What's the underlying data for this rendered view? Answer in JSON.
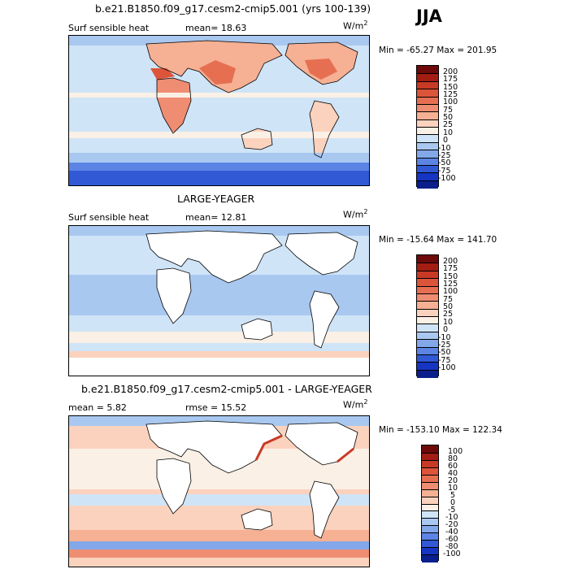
{
  "season": "JJA",
  "panels": [
    {
      "title": "b.e21.B1850.f09_g17.cesm2-cmip5.001 (yrs 100-139)",
      "label_left": "Surf sensible heat",
      "stat_mid": "mean=  18.63",
      "units": "W/m",
      "units_sup": "2",
      "minmax": "Min = -65.27 Max = 201.95"
    },
    {
      "title": "LARGE-YEAGER",
      "label_left": "Surf sensible heat",
      "stat_mid": "mean=  12.81",
      "units": "W/m",
      "units_sup": "2",
      "minmax": "Min = -15.64 Max = 141.70"
    },
    {
      "title": "b.e21.B1850.f09_g17.cesm2-cmip5.001 - LARGE-YEAGER",
      "label_left": "mean =   5.82",
      "stat_mid": "rmse =   15.52",
      "units": "W/m",
      "units_sup": "2",
      "minmax": "Min = -153.10 Max = 122.34"
    }
  ],
  "chart_data": [
    {
      "type": "heatmap",
      "title": "b.e21.B1850.f09_g17.cesm2-cmip5.001 (yrs 100-139)",
      "variable": "Surf sensible heat",
      "units": "W/m^2",
      "mean": 18.63,
      "min": -65.27,
      "max": 201.95,
      "colorbar_levels": [
        "200",
        "175",
        "150",
        "125",
        "100",
        "75",
        "50",
        "25",
        "10",
        "0",
        "-10",
        "-25",
        "-50",
        "-75",
        "-100"
      ],
      "colorbar_colors": [
        "#6e0a0a",
        "#a41d13",
        "#c83a25",
        "#dc553a",
        "#e66f52",
        "#ef8d72",
        "#f6b093",
        "#fbd2bd",
        "#faf0e6",
        "#cfe4f7",
        "#a9c8f0",
        "#83a8ea",
        "#5c84e4",
        "#3159d6",
        "#1535c2",
        "#0a1f8c"
      ]
    },
    {
      "type": "heatmap",
      "title": "LARGE-YEAGER",
      "variable": "Surf sensible heat",
      "units": "W/m^2",
      "mean": 12.81,
      "min": -15.64,
      "max": 141.7,
      "colorbar_levels": [
        "200",
        "175",
        "150",
        "125",
        "100",
        "75",
        "50",
        "25",
        "10",
        "0",
        "-10",
        "-25",
        "-50",
        "-75",
        "-100"
      ],
      "colorbar_colors": [
        "#6e0a0a",
        "#a41d13",
        "#c83a25",
        "#dc553a",
        "#e66f52",
        "#ef8d72",
        "#f6b093",
        "#fbd2bd",
        "#faf0e6",
        "#cfe4f7",
        "#a9c8f0",
        "#83a8ea",
        "#5c84e4",
        "#3159d6",
        "#1535c2",
        "#0a1f8c"
      ]
    },
    {
      "type": "heatmap",
      "title": "b.e21.B1850.f09_g17.cesm2-cmip5.001 - LARGE-YEAGER",
      "units": "W/m^2",
      "mean": 5.82,
      "rmse": 15.52,
      "min": -153.1,
      "max": 122.34,
      "colorbar_levels": [
        "100",
        "80",
        "60",
        "40",
        "20",
        "10",
        "5",
        "0",
        "-5",
        "-10",
        "-20",
        "-40",
        "-60",
        "-80",
        "-100"
      ],
      "colorbar_colors": [
        "#6e0a0a",
        "#a41d13",
        "#c83a25",
        "#dc553a",
        "#e66f52",
        "#ef8d72",
        "#f6b093",
        "#fbd2bd",
        "#faf0e6",
        "#cfe4f7",
        "#a9c8f0",
        "#83a8ea",
        "#5c84e4",
        "#3159d6",
        "#1535c2",
        "#0a1f8c"
      ]
    }
  ]
}
